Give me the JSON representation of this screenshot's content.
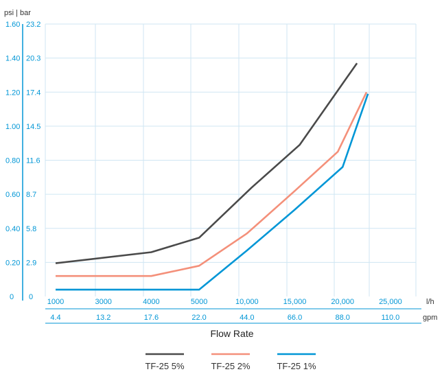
{
  "chart_data": {
    "type": "line",
    "units_label": "psi | bar",
    "y_ticks_psi": [
      "0",
      "0.20",
      "0.40",
      "0.60",
      "0.80",
      "1.00",
      "1.20",
      "1.40",
      "1.60"
    ],
    "y_ticks_bar": [
      "0",
      "2.9",
      "5.8",
      "8.7",
      "11.6",
      "14.5",
      "17.4",
      "20.3",
      "23.2"
    ],
    "ylim_psi": [
      0,
      1.6
    ],
    "categories_lh": [
      "1000",
      "3000",
      "4000",
      "5000",
      "10,000",
      "15,000",
      "20,000",
      "25,000"
    ],
    "categories_gpm": [
      "4.4",
      "13.2",
      "17.6",
      "22.0",
      "44.0",
      "66.0",
      "88.0",
      "110.0"
    ],
    "unit_lh": "l/h",
    "unit_gpm": "gpm",
    "xlabel": "Flow Rate",
    "grid": true,
    "legend_position": "bottom",
    "series": [
      {
        "name": "TF-25 5%",
        "color": "#4a4a4a",
        "points": [
          [
            0,
            0.195
          ],
          [
            2,
            0.26
          ],
          [
            3,
            0.345
          ],
          [
            4.1,
            0.64
          ],
          [
            5.1,
            0.89
          ],
          [
            6.3,
            1.37
          ]
        ]
      },
      {
        "name": "TF-25 2%",
        "color": "#f4907a",
        "points": [
          [
            0,
            0.12
          ],
          [
            2,
            0.12
          ],
          [
            3,
            0.18
          ],
          [
            4,
            0.37
          ],
          [
            5,
            0.62
          ],
          [
            5.9,
            0.85
          ],
          [
            6.5,
            1.2
          ]
        ]
      },
      {
        "name": "TF-25 1%",
        "color": "#0096d6",
        "points": [
          [
            0,
            0.04
          ],
          [
            1,
            0.04
          ],
          [
            2,
            0.04
          ],
          [
            3,
            0.04
          ],
          [
            4,
            0.27
          ],
          [
            5,
            0.51
          ],
          [
            6,
            0.76
          ],
          [
            6.53,
            1.19
          ]
        ]
      }
    ]
  }
}
